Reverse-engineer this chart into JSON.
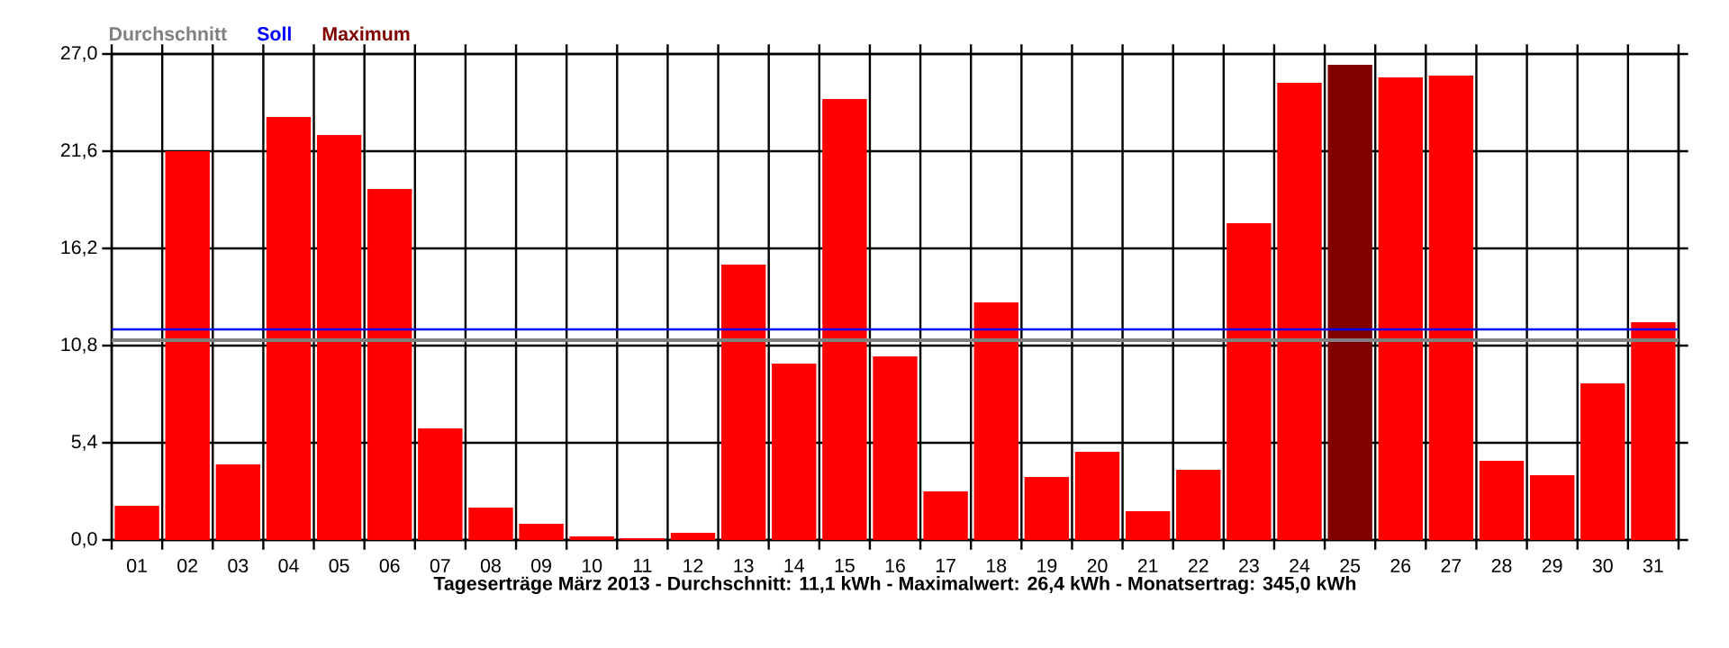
{
  "chart_data": {
    "type": "bar",
    "categories": [
      "01",
      "02",
      "03",
      "04",
      "05",
      "06",
      "07",
      "08",
      "09",
      "10",
      "11",
      "12",
      "13",
      "14",
      "15",
      "16",
      "17",
      "18",
      "19",
      "20",
      "21",
      "22",
      "23",
      "24",
      "25",
      "26",
      "27",
      "28",
      "29",
      "30",
      "31"
    ],
    "values": [
      1.9,
      21.6,
      4.2,
      23.5,
      22.5,
      19.5,
      6.2,
      1.8,
      0.9,
      0.2,
      0.1,
      0.4,
      15.3,
      9.8,
      24.5,
      10.2,
      2.7,
      13.2,
      3.5,
      4.9,
      1.6,
      3.9,
      17.6,
      25.4,
      26.4,
      25.7,
      25.8,
      4.4,
      3.6,
      8.7,
      12.1
    ],
    "colors": [
      "#ff0000",
      "#ff0000",
      "#ff0000",
      "#ff0000",
      "#ff0000",
      "#ff0000",
      "#ff0000",
      "#ff0000",
      "#ff0000",
      "#ff0000",
      "#ff0000",
      "#ff0000",
      "#ff0000",
      "#ff0000",
      "#ff0000",
      "#ff0000",
      "#ff0000",
      "#ff0000",
      "#ff0000",
      "#ff0000",
      "#ff0000",
      "#ff0000",
      "#ff0000",
      "#ff0000",
      "#800000",
      "#ff0000",
      "#ff0000",
      "#ff0000",
      "#ff0000",
      "#ff0000",
      "#ff0000"
    ],
    "ylim": [
      0,
      27
    ],
    "yticks": [
      {
        "value": 0,
        "label": "0,0"
      },
      {
        "value": 5.4,
        "label": "5,4"
      },
      {
        "value": 10.8,
        "label": "10,8"
      },
      {
        "value": 16.2,
        "label": "16,2"
      },
      {
        "value": 21.6,
        "label": "21,6"
      },
      {
        "value": 27,
        "label": "27,0"
      }
    ],
    "ref_lines": [
      {
        "axis": "y",
        "value": 11.1,
        "label": "Durchschnitt",
        "color": "#808080"
      },
      {
        "axis": "y",
        "value": 11.7,
        "label": "Soll",
        "color": "#0000ff"
      }
    ],
    "annotations": [
      "Maximum"
    ],
    "xlabel": "Tageserträge März 2013 - Durchschnitt: 11,1 kWh - Maximalwert: 26,4 kWh - Monatsertrag: 345,0 kWh",
    "grid": true,
    "legend": "top left"
  }
}
